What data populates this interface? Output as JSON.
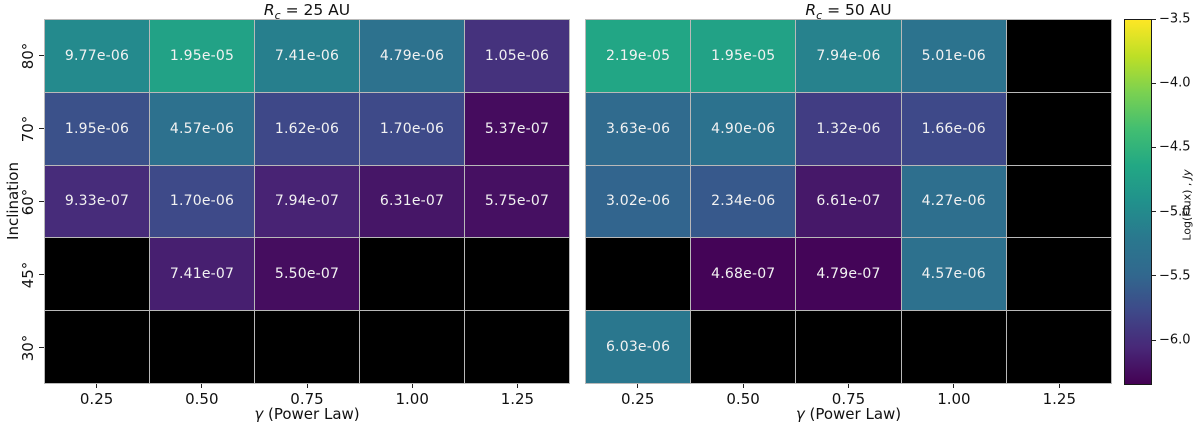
{
  "figure": {
    "background": "#ffffff",
    "ylabel": "Inclination",
    "xlabel": "γ (Power Law)",
    "xlabel_var": "γ",
    "xlabel_rest": " (Power Law)",
    "x_ticks": [
      "0.25",
      "0.50",
      "0.75",
      "1.00",
      "1.25"
    ],
    "y_ticks": [
      "80°",
      "70°",
      "60°",
      "45°",
      "30°"
    ],
    "grid_line_color": "#b9b9b9",
    "empty_cell_color": "#000000",
    "cell_text_color": "#f2f2f2",
    "axis_text_color": "#111111"
  },
  "chart_data": [
    {
      "type": "heatmap",
      "title": "R_c = 25 AU",
      "title_var": "R",
      "title_sub": "c",
      "title_rest": " = 25 AU",
      "xlabel": "γ (Power Law)",
      "ylabel": "Inclination",
      "x_categories": [
        "0.25",
        "0.50",
        "0.75",
        "1.00",
        "1.25"
      ],
      "y_categories": [
        "80°",
        "70°",
        "60°",
        "45°",
        "30°"
      ],
      "values": [
        [
          9.77e-06,
          1.95e-05,
          7.41e-06,
          4.79e-06,
          1.05e-06
        ],
        [
          1.95e-06,
          4.57e-06,
          1.62e-06,
          1.7e-06,
          5.37e-07
        ],
        [
          9.33e-07,
          1.7e-06,
          7.94e-07,
          6.31e-07,
          5.75e-07
        ],
        [
          null,
          7.41e-07,
          5.5e-07,
          null,
          null
        ],
        [
          null,
          null,
          null,
          null,
          null
        ]
      ],
      "labels": [
        [
          "9.77e-06",
          "1.95e-05",
          "7.41e-06",
          "4.79e-06",
          "1.05e-06"
        ],
        [
          "1.95e-06",
          "4.57e-06",
          "1.62e-06",
          "1.70e-06",
          "5.37e-07"
        ],
        [
          "9.33e-07",
          "1.70e-06",
          "7.94e-07",
          "6.31e-07",
          "5.75e-07"
        ],
        [
          "",
          "7.41e-07",
          "5.50e-07",
          "",
          ""
        ],
        [
          "",
          "",
          "",
          "",
          ""
        ]
      ]
    },
    {
      "type": "heatmap",
      "title": "R_c = 50 AU",
      "title_var": "R",
      "title_sub": "c",
      "title_rest": " = 50 AU",
      "xlabel": "γ (Power Law)",
      "ylabel": "Inclination",
      "x_categories": [
        "0.25",
        "0.50",
        "0.75",
        "1.00",
        "1.25"
      ],
      "y_categories": [
        "80°",
        "70°",
        "60°",
        "45°",
        "30°"
      ],
      "values": [
        [
          2.19e-05,
          1.95e-05,
          7.94e-06,
          5.01e-06,
          null
        ],
        [
          3.63e-06,
          4.9e-06,
          1.32e-06,
          1.66e-06,
          null
        ],
        [
          3.02e-06,
          2.34e-06,
          6.61e-07,
          4.27e-06,
          null
        ],
        [
          null,
          4.68e-07,
          4.79e-07,
          4.57e-06,
          null
        ],
        [
          6.03e-06,
          null,
          null,
          null,
          null
        ]
      ],
      "labels": [
        [
          "2.19e-05",
          "1.95e-05",
          "7.94e-06",
          "5.01e-06",
          ""
        ],
        [
          "3.63e-06",
          "4.90e-06",
          "1.32e-06",
          "1.66e-06",
          ""
        ],
        [
          "3.02e-06",
          "2.34e-06",
          "6.61e-07",
          "4.27e-06",
          ""
        ],
        [
          "",
          "4.68e-07",
          "4.79e-07",
          "4.57e-06",
          ""
        ],
        [
          "6.03e-06",
          "",
          "",
          "",
          ""
        ]
      ]
    }
  ],
  "colorbar": {
    "label": "Log(Flux) , Jy",
    "label_main": "Log(Flux) , ",
    "label_unit": "Jy",
    "tick_labels": [
      "−3.5",
      "−4.0",
      "−4.5",
      "−5.0",
      "−5.5",
      "−6.0"
    ],
    "tick_values": [
      -3.5,
      -4.0,
      -4.5,
      -5.0,
      -5.5,
      -6.0
    ],
    "vmin": -6.35,
    "vmax": -3.5,
    "colormap": "viridis",
    "colormap_stops": [
      "#440154",
      "#482878",
      "#3e4989",
      "#31688e",
      "#2a788e",
      "#21918c",
      "#22a884",
      "#42be71",
      "#7ad151",
      "#bddf26",
      "#fde725"
    ]
  }
}
